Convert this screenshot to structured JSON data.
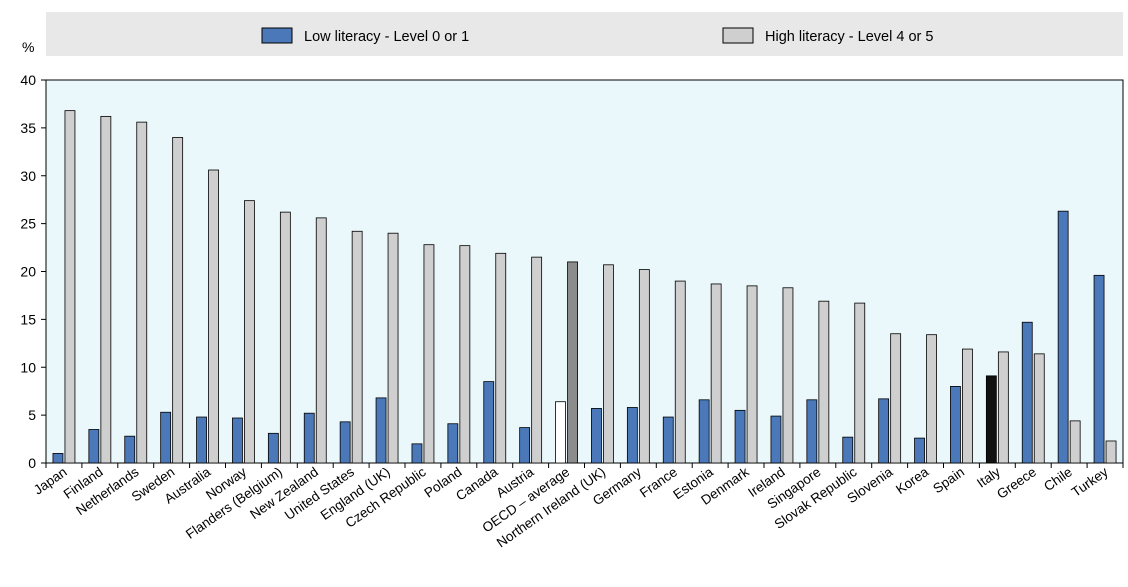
{
  "chart_data": {
    "type": "bar",
    "title": "",
    "xlabel": "",
    "ylabel": "%",
    "ylim": [
      0,
      40
    ],
    "yticks": [
      0,
      5,
      10,
      15,
      20,
      25,
      30,
      35,
      40
    ],
    "grid": false,
    "legend_position": "top",
    "colors": {
      "low": "#4a78b8",
      "high": "#cfcfcf",
      "highlight_low_oecd": "#ffffff",
      "highlight_high_oecd": "#8c8c8c",
      "highlight_low_italy": "#111111",
      "highlight_high_italy": "#cfcfcf",
      "plot_background": "#eaf7fb",
      "legend_background": "#e8e8e8"
    },
    "categories": [
      "Japan",
      "Finland",
      "Netherlands",
      "Sweden",
      "Australia",
      "Norway",
      "Flanders (Belgium)",
      "New Zealand",
      "United States",
      "England (UK)",
      "Czech Republic",
      "Poland",
      "Canada",
      "Austria",
      "OECD – average",
      "Northern Ireland (UK)",
      "Germany",
      "France",
      "Estonia",
      "Denmark",
      "Ireland",
      "Singapore",
      "Slovak Republic",
      "Slovenia",
      "Korea",
      "Spain",
      "Italy",
      "Greece",
      "Chile",
      "Turkey"
    ],
    "series": [
      {
        "name": "Low literacy - Level 0 or 1",
        "values": [
          1.0,
          3.5,
          2.8,
          5.3,
          4.8,
          4.7,
          3.1,
          5.2,
          4.3,
          6.8,
          2.0,
          4.1,
          8.5,
          3.7,
          6.4,
          5.7,
          5.8,
          4.8,
          6.6,
          5.5,
          4.9,
          6.6,
          2.7,
          6.7,
          2.6,
          8.0,
          9.1,
          14.7,
          26.3,
          19.6
        ]
      },
      {
        "name": "High literacy - Level 4 or 5",
        "values": [
          36.8,
          36.2,
          35.6,
          34.0,
          30.6,
          27.4,
          26.2,
          25.6,
          24.2,
          24.0,
          22.8,
          22.7,
          21.9,
          21.5,
          21.0,
          20.7,
          20.2,
          19.0,
          18.7,
          18.5,
          18.3,
          16.9,
          16.7,
          13.5,
          13.4,
          11.9,
          11.6,
          11.4,
          4.4,
          2.3
        ]
      }
    ],
    "highlighted_categories": [
      "OECD – average",
      "Italy"
    ]
  }
}
